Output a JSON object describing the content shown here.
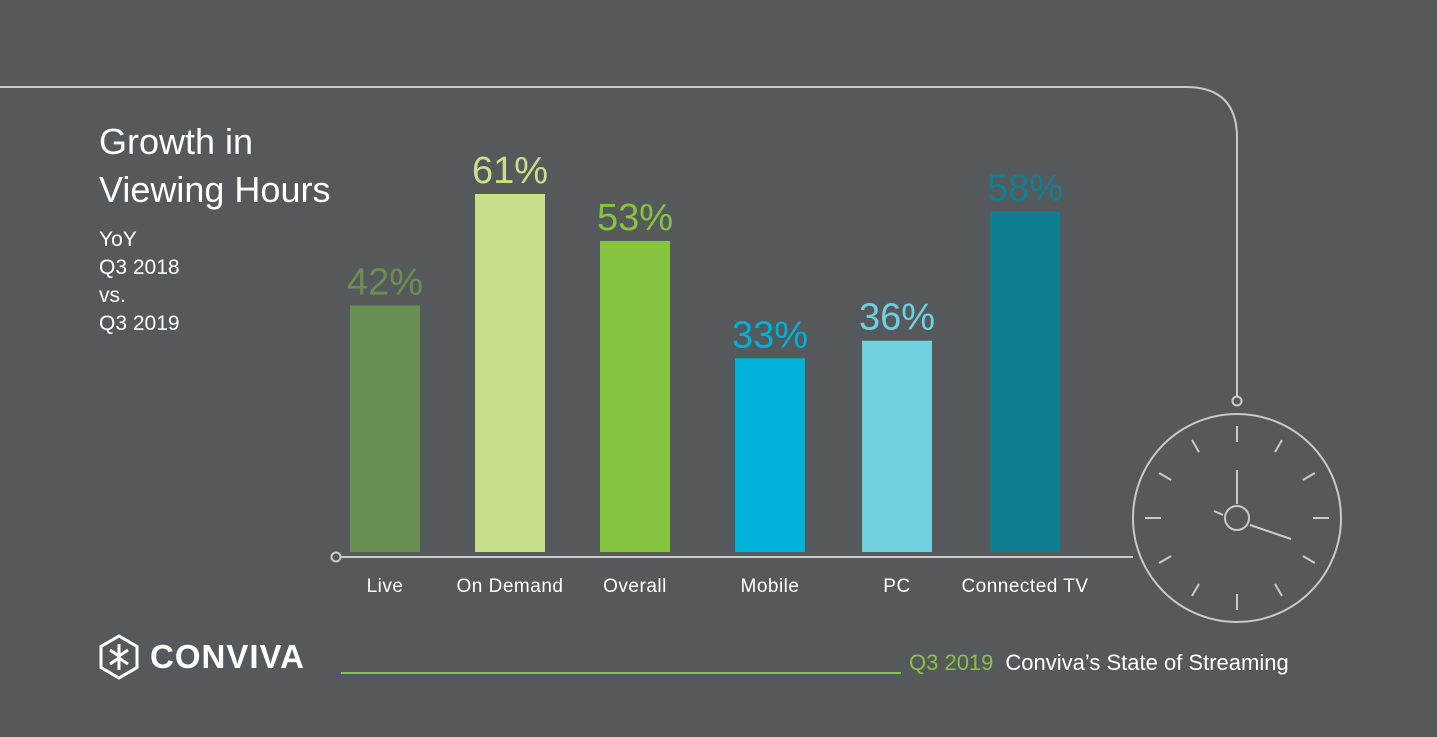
{
  "title_lines": [
    "Growth in",
    "Viewing Hours"
  ],
  "subtitle_lines": [
    "YoY",
    "Q3 2018",
    "vs.",
    "Q3 2019"
  ],
  "brand": {
    "logo_text": "CONVIVA"
  },
  "footer": {
    "date": "Q3 2019",
    "text": "Conviva’s State of Streaming"
  },
  "colors": {
    "background": "#55595c",
    "accent_green": "#86c440",
    "line": "#c8cacc"
  },
  "chart_data": {
    "type": "bar",
    "title": "Growth in Viewing Hours",
    "categories": [
      "Live",
      "On Demand",
      "Overall",
      "Mobile",
      "PC",
      "Connected TV"
    ],
    "values": [
      42,
      61,
      53,
      33,
      36,
      58
    ],
    "value_labels": [
      "42%",
      "61%",
      "53%",
      "33%",
      "36%",
      "58%"
    ],
    "colors": [
      "#6a8f52",
      "#c8df8b",
      "#86c440",
      "#00b1d8",
      "#71d0e0",
      "#0e7f90"
    ],
    "ylim": [
      0,
      61
    ],
    "grid": false
  }
}
